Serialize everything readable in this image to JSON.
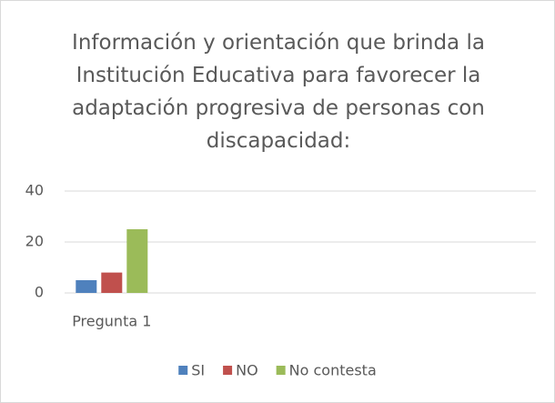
{
  "chart_data": {
    "type": "bar",
    "title": "Información y orientación que brinda la Institución Educativa para favorecer la adaptación progresiva de personas con discapacidad:",
    "categories": [
      "Pregunta 1",
      null,
      null,
      null,
      null
    ],
    "series": [
      {
        "name": "SI",
        "color": "#4f81bd",
        "values": [
          5,
          null,
          null,
          null,
          null
        ]
      },
      {
        "name": "NO",
        "color": "#c0504d",
        "values": [
          8,
          null,
          null,
          null,
          null
        ]
      },
      {
        "name": "No contesta",
        "color": "#9bbb59",
        "values": [
          25,
          null,
          null,
          null,
          null
        ]
      }
    ],
    "ylim": [
      0,
      40
    ],
    "yticks": [
      0,
      20,
      40
    ],
    "grid": true,
    "legend": "bottom"
  }
}
